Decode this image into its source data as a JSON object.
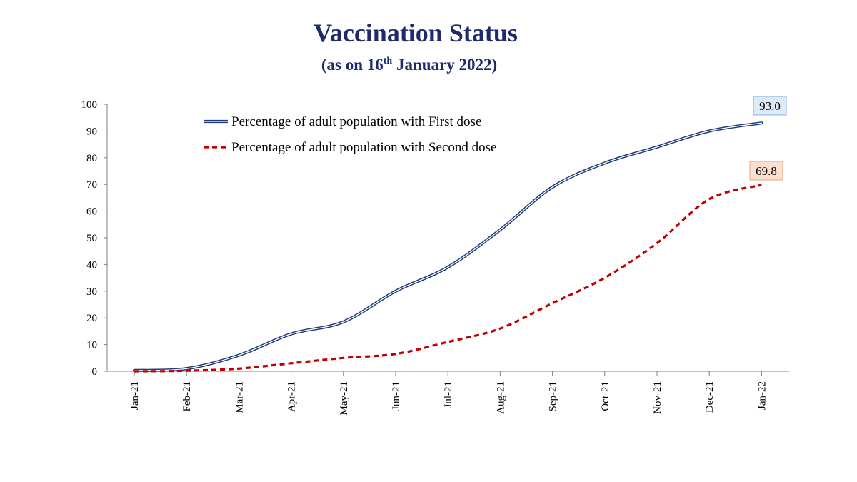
{
  "chart_data": {
    "type": "line",
    "title": "Vaccination Status",
    "subtitle": {
      "prefix": "(as on 16",
      "superscript": "th",
      "suffix": " January 2022)"
    },
    "xlabel": "",
    "ylabel": "",
    "ylim": [
      0,
      100
    ],
    "yticks": [
      0,
      10,
      20,
      30,
      40,
      50,
      60,
      70,
      80,
      90,
      100
    ],
    "categories": [
      "Jan-21",
      "Feb-21",
      "Mar-21",
      "Apr-21",
      "May-21",
      "Jun-21",
      "Jul-21",
      "Aug-21",
      "Sep-21",
      "Oct-21",
      "Nov-21",
      "Dec-21",
      "Jan-22"
    ],
    "series": [
      {
        "name": "Percentage of adult population with First dose",
        "values": [
          0.3,
          1.0,
          6.0,
          14.0,
          18.5,
          30.0,
          39.0,
          53.0,
          69.0,
          78.0,
          84.0,
          90.0,
          93.0
        ],
        "color": "#1f3a7a",
        "style": "double-solid",
        "end_label": "93.0",
        "end_label_fill": "#dce9f7",
        "end_label_border": "#8db3dd"
      },
      {
        "name": "Percentage of adult population with Second dose",
        "values": [
          0.0,
          0.2,
          1.0,
          3.0,
          5.0,
          6.5,
          11.0,
          16.0,
          25.5,
          35.0,
          48.0,
          64.5,
          69.8
        ],
        "color": "#c00000",
        "style": "dashed",
        "end_label": "69.8",
        "end_label_fill": "#fbe0cd",
        "end_label_border": "#e8a77d"
      }
    ],
    "grid": false,
    "legend_position": "top-left"
  }
}
